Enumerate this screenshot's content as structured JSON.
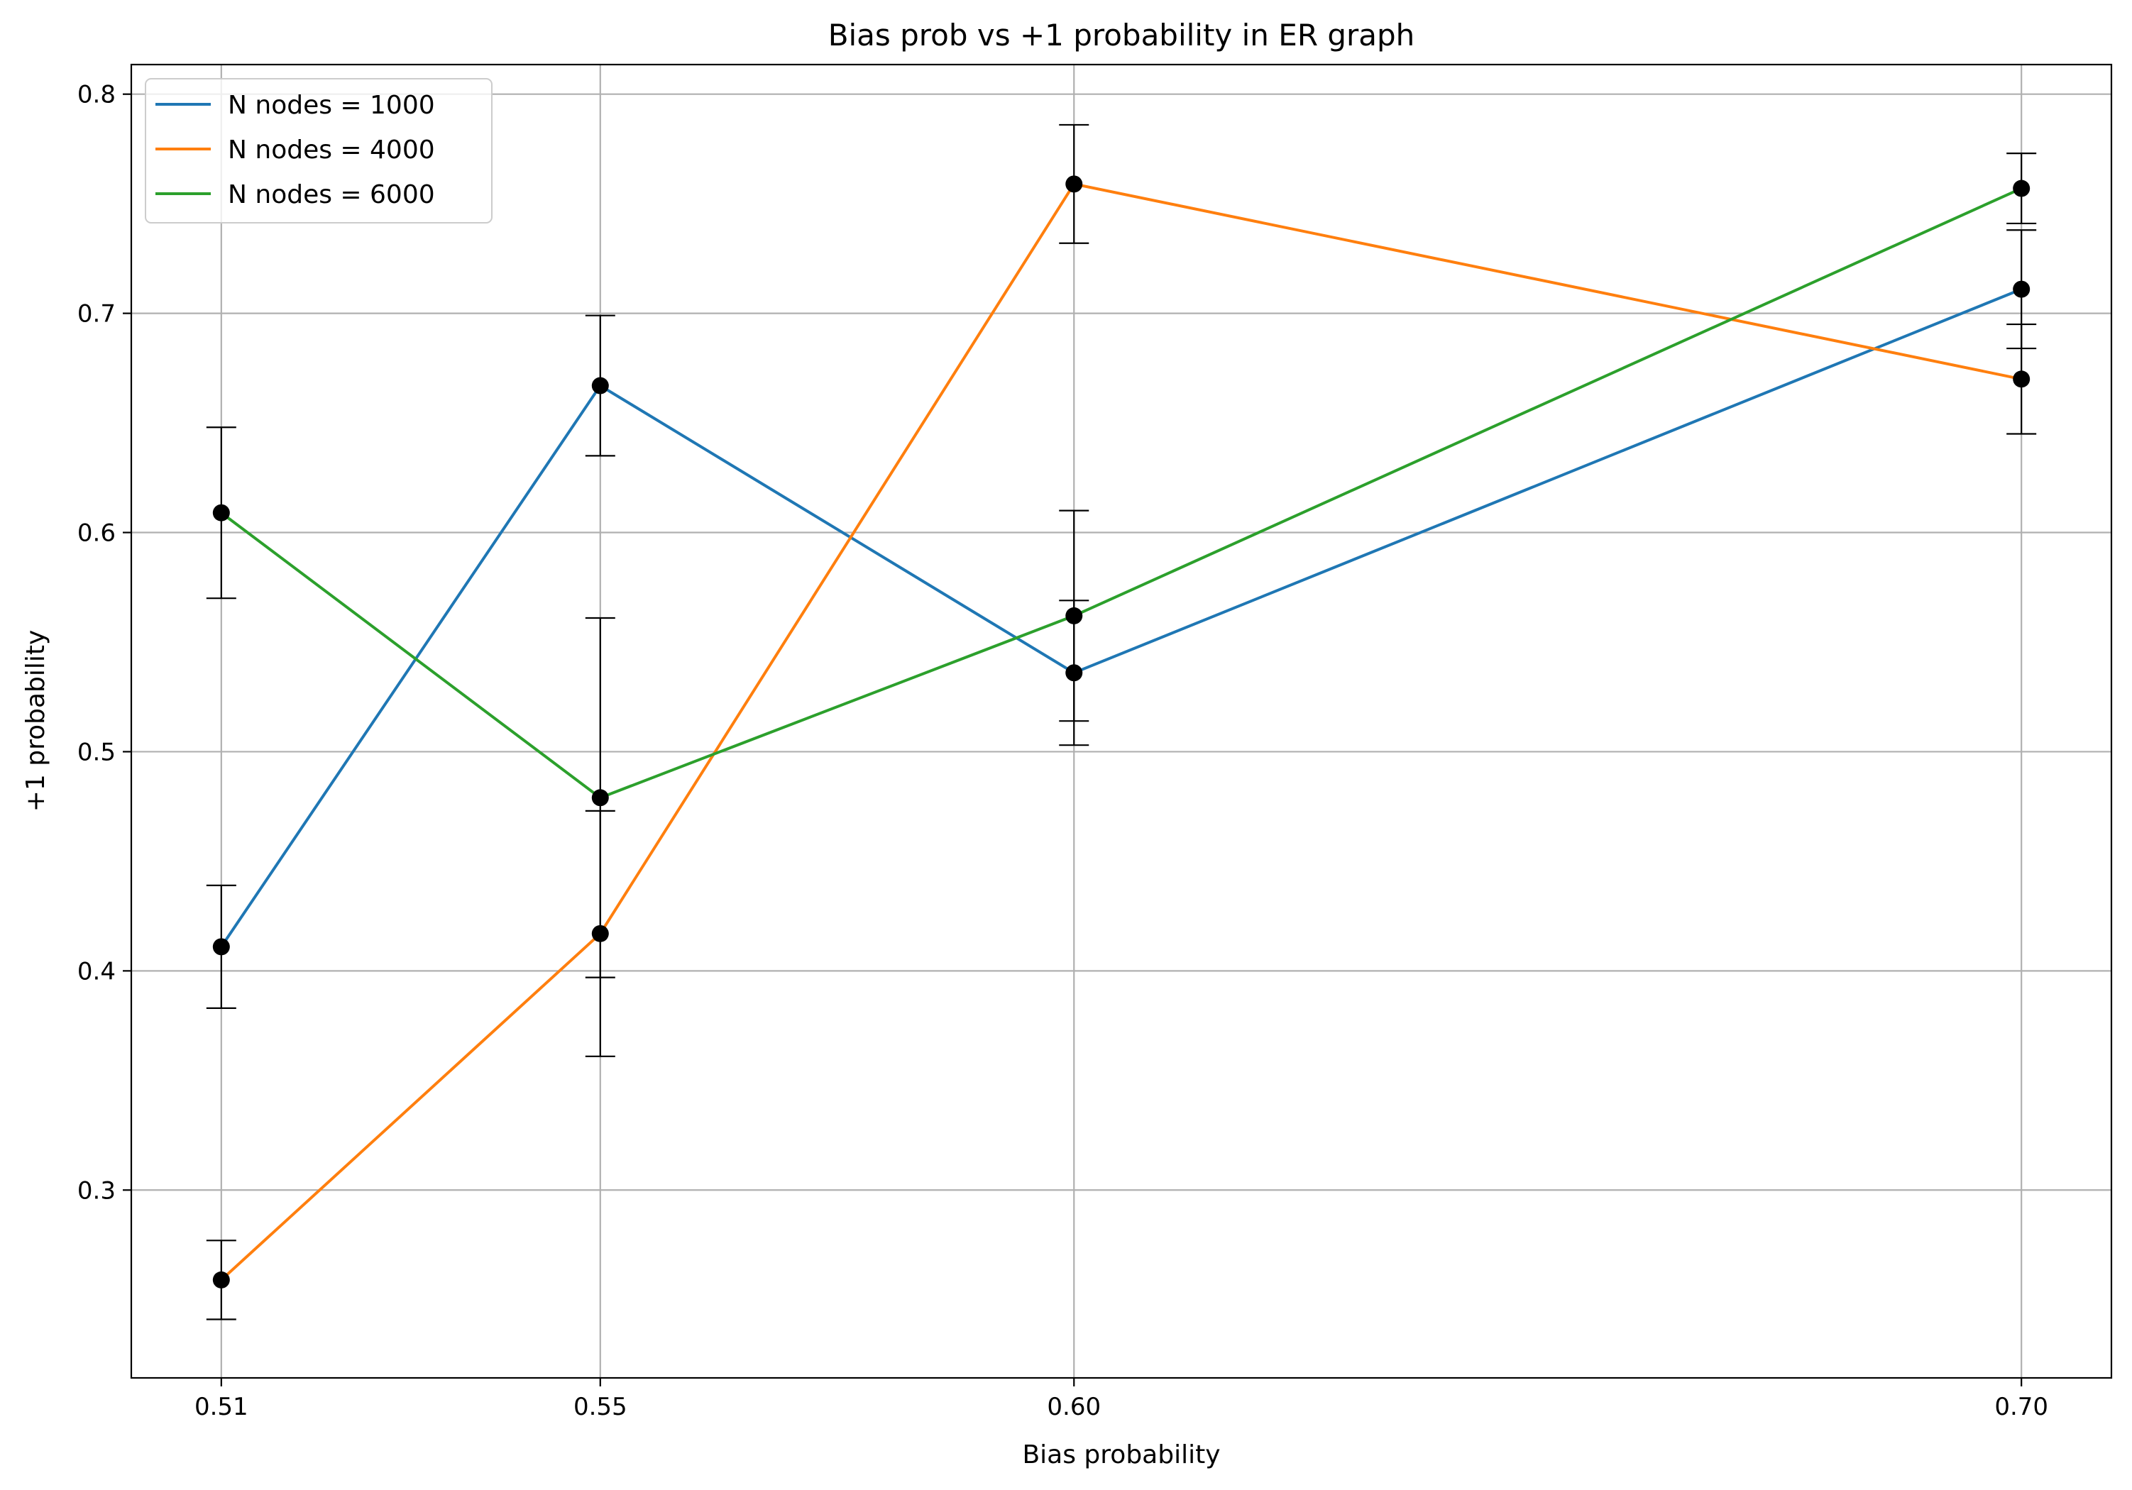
{
  "chart_data": {
    "type": "line",
    "title": "Bias prob vs +1 probability in ER graph",
    "xlabel": "Bias probability",
    "ylabel": "+1 probability",
    "x": [
      0.51,
      0.55,
      0.6,
      0.7
    ],
    "x_tick_labels": [
      "0.51",
      "0.55",
      "0.60",
      "0.70"
    ],
    "xlim": [
      0.5005,
      0.7095
    ],
    "y_ticks": [
      0.3,
      0.4,
      0.5,
      0.6,
      0.7,
      0.8
    ],
    "y_tick_labels": [
      "0.3",
      "0.4",
      "0.5",
      "0.6",
      "0.7",
      "0.8"
    ],
    "ylim": [
      0.2143,
      0.8135
    ],
    "grid": true,
    "legend_position": "upper-left",
    "marker_color": "#000000",
    "error_bar_color": "#000000",
    "series": [
      {
        "name": "N nodes = 1000",
        "color": "#1f77b4",
        "values": [
          0.411,
          0.667,
          0.536,
          0.711
        ],
        "errors": [
          0.028,
          0.032,
          0.033,
          0.027
        ]
      },
      {
        "name": "N nodes = 4000",
        "color": "#ff7f0e",
        "values": [
          0.259,
          0.417,
          0.759,
          0.67
        ],
        "errors": [
          0.018,
          0.056,
          0.027,
          0.025
        ]
      },
      {
        "name": "N nodes = 6000",
        "color": "#2ca02c",
        "values": [
          0.609,
          0.479,
          0.562,
          0.757
        ],
        "errors": [
          0.039,
          0.082,
          0.048,
          0.016
        ]
      }
    ]
  }
}
